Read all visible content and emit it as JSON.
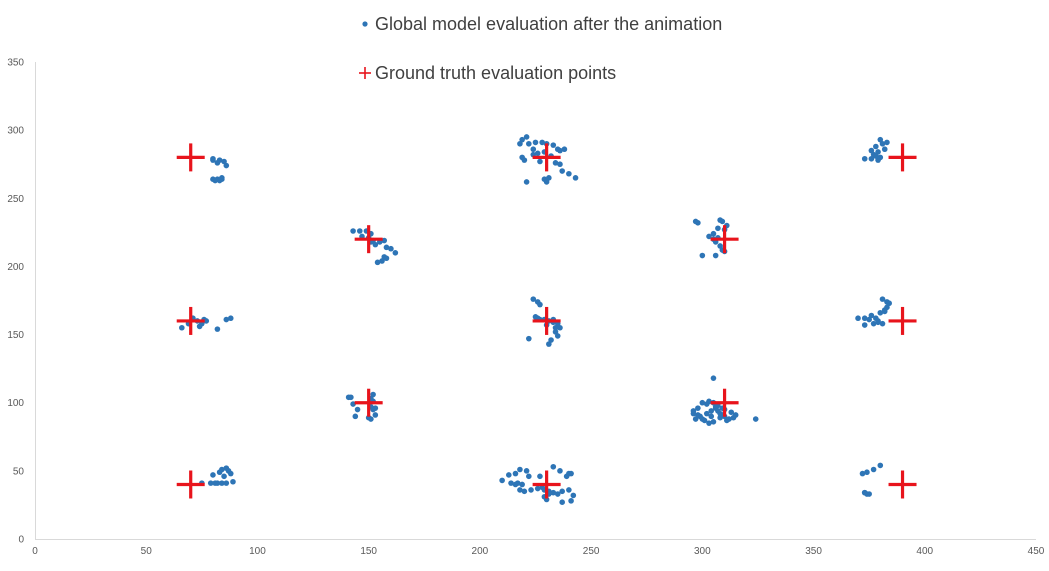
{
  "chart_data": {
    "type": "scatter",
    "title": "",
    "xlabel": "",
    "ylabel": "",
    "xlim": [
      0,
      450
    ],
    "ylim": [
      0,
      350
    ],
    "x_ticks": [
      "0",
      "50",
      "100",
      "150",
      "200",
      "250",
      "300",
      "350",
      "400",
      "450"
    ],
    "y_ticks": [
      "0",
      "50",
      "100",
      "150",
      "200",
      "250",
      "300",
      "350"
    ],
    "grid": false,
    "legend_position": "top-center",
    "colors": {
      "model": "#2e75b6",
      "truth": "#e8141c",
      "axis": "#d9d9d9"
    },
    "series": [
      {
        "name": "Global model evaluation after the animation",
        "marker": "dot",
        "points": [
          [
            80,
            278
          ],
          [
            83,
            278
          ],
          [
            85,
            277
          ],
          [
            86,
            274
          ],
          [
            80,
            264
          ],
          [
            82,
            264
          ],
          [
            84,
            265
          ],
          [
            81,
            263
          ],
          [
            80,
            279
          ],
          [
            82,
            276
          ],
          [
            84,
            264
          ],
          [
            83,
            263
          ],
          [
            218,
            290
          ],
          [
            219,
            293
          ],
          [
            221,
            295
          ],
          [
            222,
            290
          ],
          [
            225,
            291
          ],
          [
            228,
            291
          ],
          [
            230,
            290
          ],
          [
            233,
            289
          ],
          [
            235,
            286
          ],
          [
            236,
            285
          ],
          [
            238,
            286
          ],
          [
            219,
            280
          ],
          [
            220,
            278
          ],
          [
            224,
            286
          ],
          [
            226,
            283
          ],
          [
            227,
            277
          ],
          [
            232,
            281
          ],
          [
            234,
            276
          ],
          [
            236,
            275
          ],
          [
            237,
            270
          ],
          [
            240,
            268
          ],
          [
            243,
            265
          ],
          [
            221,
            262
          ],
          [
            229,
            264
          ],
          [
            230,
            262
          ],
          [
            231,
            265
          ],
          [
            224,
            282
          ],
          [
            229,
            284
          ],
          [
            373,
            279
          ],
          [
            376,
            285
          ],
          [
            377,
            282
          ],
          [
            378,
            288
          ],
          [
            379,
            284
          ],
          [
            381,
            290
          ],
          [
            382,
            286
          ],
          [
            380,
            293
          ],
          [
            383,
            291
          ],
          [
            376,
            279
          ],
          [
            379,
            278
          ],
          [
            380,
            280
          ],
          [
            378,
            281
          ],
          [
            143,
            226
          ],
          [
            146,
            226
          ],
          [
            149,
            226
          ],
          [
            147,
            222
          ],
          [
            150,
            221
          ],
          [
            152,
            219
          ],
          [
            155,
            218
          ],
          [
            157,
            219
          ],
          [
            158,
            214
          ],
          [
            160,
            213
          ],
          [
            157,
            207
          ],
          [
            158,
            206
          ],
          [
            162,
            210
          ],
          [
            154,
            203
          ],
          [
            151,
            218
          ],
          [
            156,
            204
          ],
          [
            151,
            224
          ],
          [
            153,
            216
          ],
          [
            298,
            232
          ],
          [
            297,
            233
          ],
          [
            303,
            222
          ],
          [
            305,
            220
          ],
          [
            308,
            234
          ],
          [
            309,
            233
          ],
          [
            307,
            228
          ],
          [
            310,
            227
          ],
          [
            307,
            221
          ],
          [
            306,
            218
          ],
          [
            308,
            215
          ],
          [
            309,
            212
          ],
          [
            310,
            211
          ],
          [
            306,
            208
          ],
          [
            300,
            208
          ],
          [
            311,
            230
          ],
          [
            305,
            224
          ],
          [
            66,
            155
          ],
          [
            69,
            158
          ],
          [
            73,
            160
          ],
          [
            75,
            158
          ],
          [
            77,
            160
          ],
          [
            74,
            156
          ],
          [
            76,
            161
          ],
          [
            86,
            161
          ],
          [
            88,
            162
          ],
          [
            82,
            154
          ],
          [
            71,
            162
          ],
          [
            224,
            176
          ],
          [
            226,
            174
          ],
          [
            227,
            172
          ],
          [
            225,
            163
          ],
          [
            227,
            161
          ],
          [
            229,
            161
          ],
          [
            231,
            160
          ],
          [
            233,
            161
          ],
          [
            226,
            162
          ],
          [
            233,
            159
          ],
          [
            235,
            158
          ],
          [
            234,
            155
          ],
          [
            236,
            155
          ],
          [
            234,
            152
          ],
          [
            235,
            149
          ],
          [
            232,
            146
          ],
          [
            231,
            143
          ],
          [
            222,
            147
          ],
          [
            230,
            157
          ],
          [
            370,
            162
          ],
          [
            373,
            162
          ],
          [
            375,
            161
          ],
          [
            377,
            158
          ],
          [
            379,
            159
          ],
          [
            381,
            158
          ],
          [
            378,
            162
          ],
          [
            380,
            166
          ],
          [
            382,
            168
          ],
          [
            383,
            170
          ],
          [
            383,
            174
          ],
          [
            381,
            176
          ],
          [
            384,
            173
          ],
          [
            376,
            164
          ],
          [
            382,
            167
          ],
          [
            373,
            157
          ],
          [
            379,
            160
          ],
          [
            141,
            104
          ],
          [
            142,
            104
          ],
          [
            143,
            99
          ],
          [
            145,
            95
          ],
          [
            144,
            90
          ],
          [
            151,
            103
          ],
          [
            152,
            106
          ],
          [
            151,
            97
          ],
          [
            152,
            95
          ],
          [
            153,
            96
          ],
          [
            150,
            89
          ],
          [
            151,
            88
          ],
          [
            153,
            91
          ],
          [
            152,
            101
          ],
          [
            305,
            118
          ],
          [
            296,
            94
          ],
          [
            298,
            96
          ],
          [
            300,
            100
          ],
          [
            302,
            99
          ],
          [
            303,
            101
          ],
          [
            305,
            100
          ],
          [
            307,
            98
          ],
          [
            310,
            95
          ],
          [
            299,
            90
          ],
          [
            297,
            88
          ],
          [
            300,
            88
          ],
          [
            302,
            92
          ],
          [
            304,
            94
          ],
          [
            306,
            96
          ],
          [
            308,
            92
          ],
          [
            310,
            90
          ],
          [
            312,
            88
          ],
          [
            314,
            89
          ],
          [
            315,
            91
          ],
          [
            308,
            89
          ],
          [
            305,
            86
          ],
          [
            303,
            85
          ],
          [
            311,
            87
          ],
          [
            301,
            87
          ],
          [
            298,
            91
          ],
          [
            309,
            96
          ],
          [
            306,
            97
          ],
          [
            313,
            93
          ],
          [
            324,
            88
          ],
          [
            296,
            92
          ],
          [
            304,
            90
          ],
          [
            307,
            94
          ],
          [
            309,
            91
          ],
          [
            75,
            41
          ],
          [
            79,
            41
          ],
          [
            81,
            41
          ],
          [
            82,
            41
          ],
          [
            84,
            41
          ],
          [
            86,
            41
          ],
          [
            89,
            42
          ],
          [
            80,
            47
          ],
          [
            83,
            49
          ],
          [
            84,
            51
          ],
          [
            86,
            52
          ],
          [
            87,
            50
          ],
          [
            85,
            46
          ],
          [
            88,
            48
          ],
          [
            210,
            43
          ],
          [
            214,
            41
          ],
          [
            216,
            40
          ],
          [
            217,
            41
          ],
          [
            219,
            40
          ],
          [
            218,
            36
          ],
          [
            220,
            35
          ],
          [
            223,
            36
          ],
          [
            226,
            37
          ],
          [
            229,
            36
          ],
          [
            231,
            35
          ],
          [
            233,
            34
          ],
          [
            235,
            33
          ],
          [
            237,
            35
          ],
          [
            240,
            36
          ],
          [
            242,
            32
          ],
          [
            241,
            28
          ],
          [
            237,
            27
          ],
          [
            229,
            31
          ],
          [
            230,
            29
          ],
          [
            216,
            48
          ],
          [
            218,
            51
          ],
          [
            221,
            50
          ],
          [
            222,
            46
          ],
          [
            227,
            46
          ],
          [
            233,
            53
          ],
          [
            236,
            50
          ],
          [
            239,
            46
          ],
          [
            240,
            48
          ],
          [
            241,
            48
          ],
          [
            228,
            38
          ],
          [
            231,
            33
          ],
          [
            213,
            47
          ],
          [
            372,
            48
          ],
          [
            374,
            49
          ],
          [
            377,
            51
          ],
          [
            380,
            54
          ],
          [
            373,
            34
          ],
          [
            374,
            33
          ],
          [
            375,
            33
          ],
          [
            373,
            34
          ]
        ]
      },
      {
        "name": "Ground truth evaluation points",
        "marker": "plus",
        "points": [
          [
            70,
            280
          ],
          [
            230,
            280
          ],
          [
            390,
            280
          ],
          [
            150,
            220
          ],
          [
            310,
            220
          ],
          [
            70,
            160
          ],
          [
            230,
            160
          ],
          [
            390,
            160
          ],
          [
            150,
            100
          ],
          [
            310,
            100
          ],
          [
            70,
            40
          ],
          [
            230,
            40
          ],
          [
            390,
            40
          ]
        ]
      }
    ]
  }
}
